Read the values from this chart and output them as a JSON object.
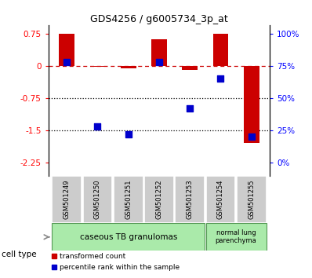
{
  "title": "GDS4256 / g6005734_3p_at",
  "samples": [
    "GSM501249",
    "GSM501250",
    "GSM501251",
    "GSM501252",
    "GSM501253",
    "GSM501254",
    "GSM501255"
  ],
  "transformed_count": [
    0.75,
    -0.02,
    -0.05,
    0.62,
    -0.1,
    0.75,
    -1.8
  ],
  "percentile_rank_raw": [
    78,
    28,
    22,
    78,
    42,
    65,
    20
  ],
  "ylim": [
    -2.55,
    0.95
  ],
  "yticks": [
    0.75,
    0,
    -0.75,
    -1.5,
    -2.25
  ],
  "right_yticks": [
    100,
    75,
    50,
    25,
    0
  ],
  "hlines": [
    -0.75,
    -1.5
  ],
  "cell_groups": [
    {
      "label": "caseous TB granulomas",
      "indices": [
        0,
        1,
        2,
        3,
        4
      ],
      "color": "#aaeaaa"
    },
    {
      "label": "normal lung\nparenchyma",
      "indices": [
        5,
        6
      ],
      "color": "#aaeaaa"
    }
  ],
  "bar_color": "#cc0000",
  "dot_color": "#0000cc",
  "dashed_line_color": "#cc0000",
  "bar_width": 0.5,
  "dot_size": 40,
  "background_color": "#ffffff",
  "plot_bg_color": "#ffffff",
  "sample_box_color": "#cccccc",
  "legend_labels": [
    "transformed count",
    "percentile rank within the sample"
  ]
}
